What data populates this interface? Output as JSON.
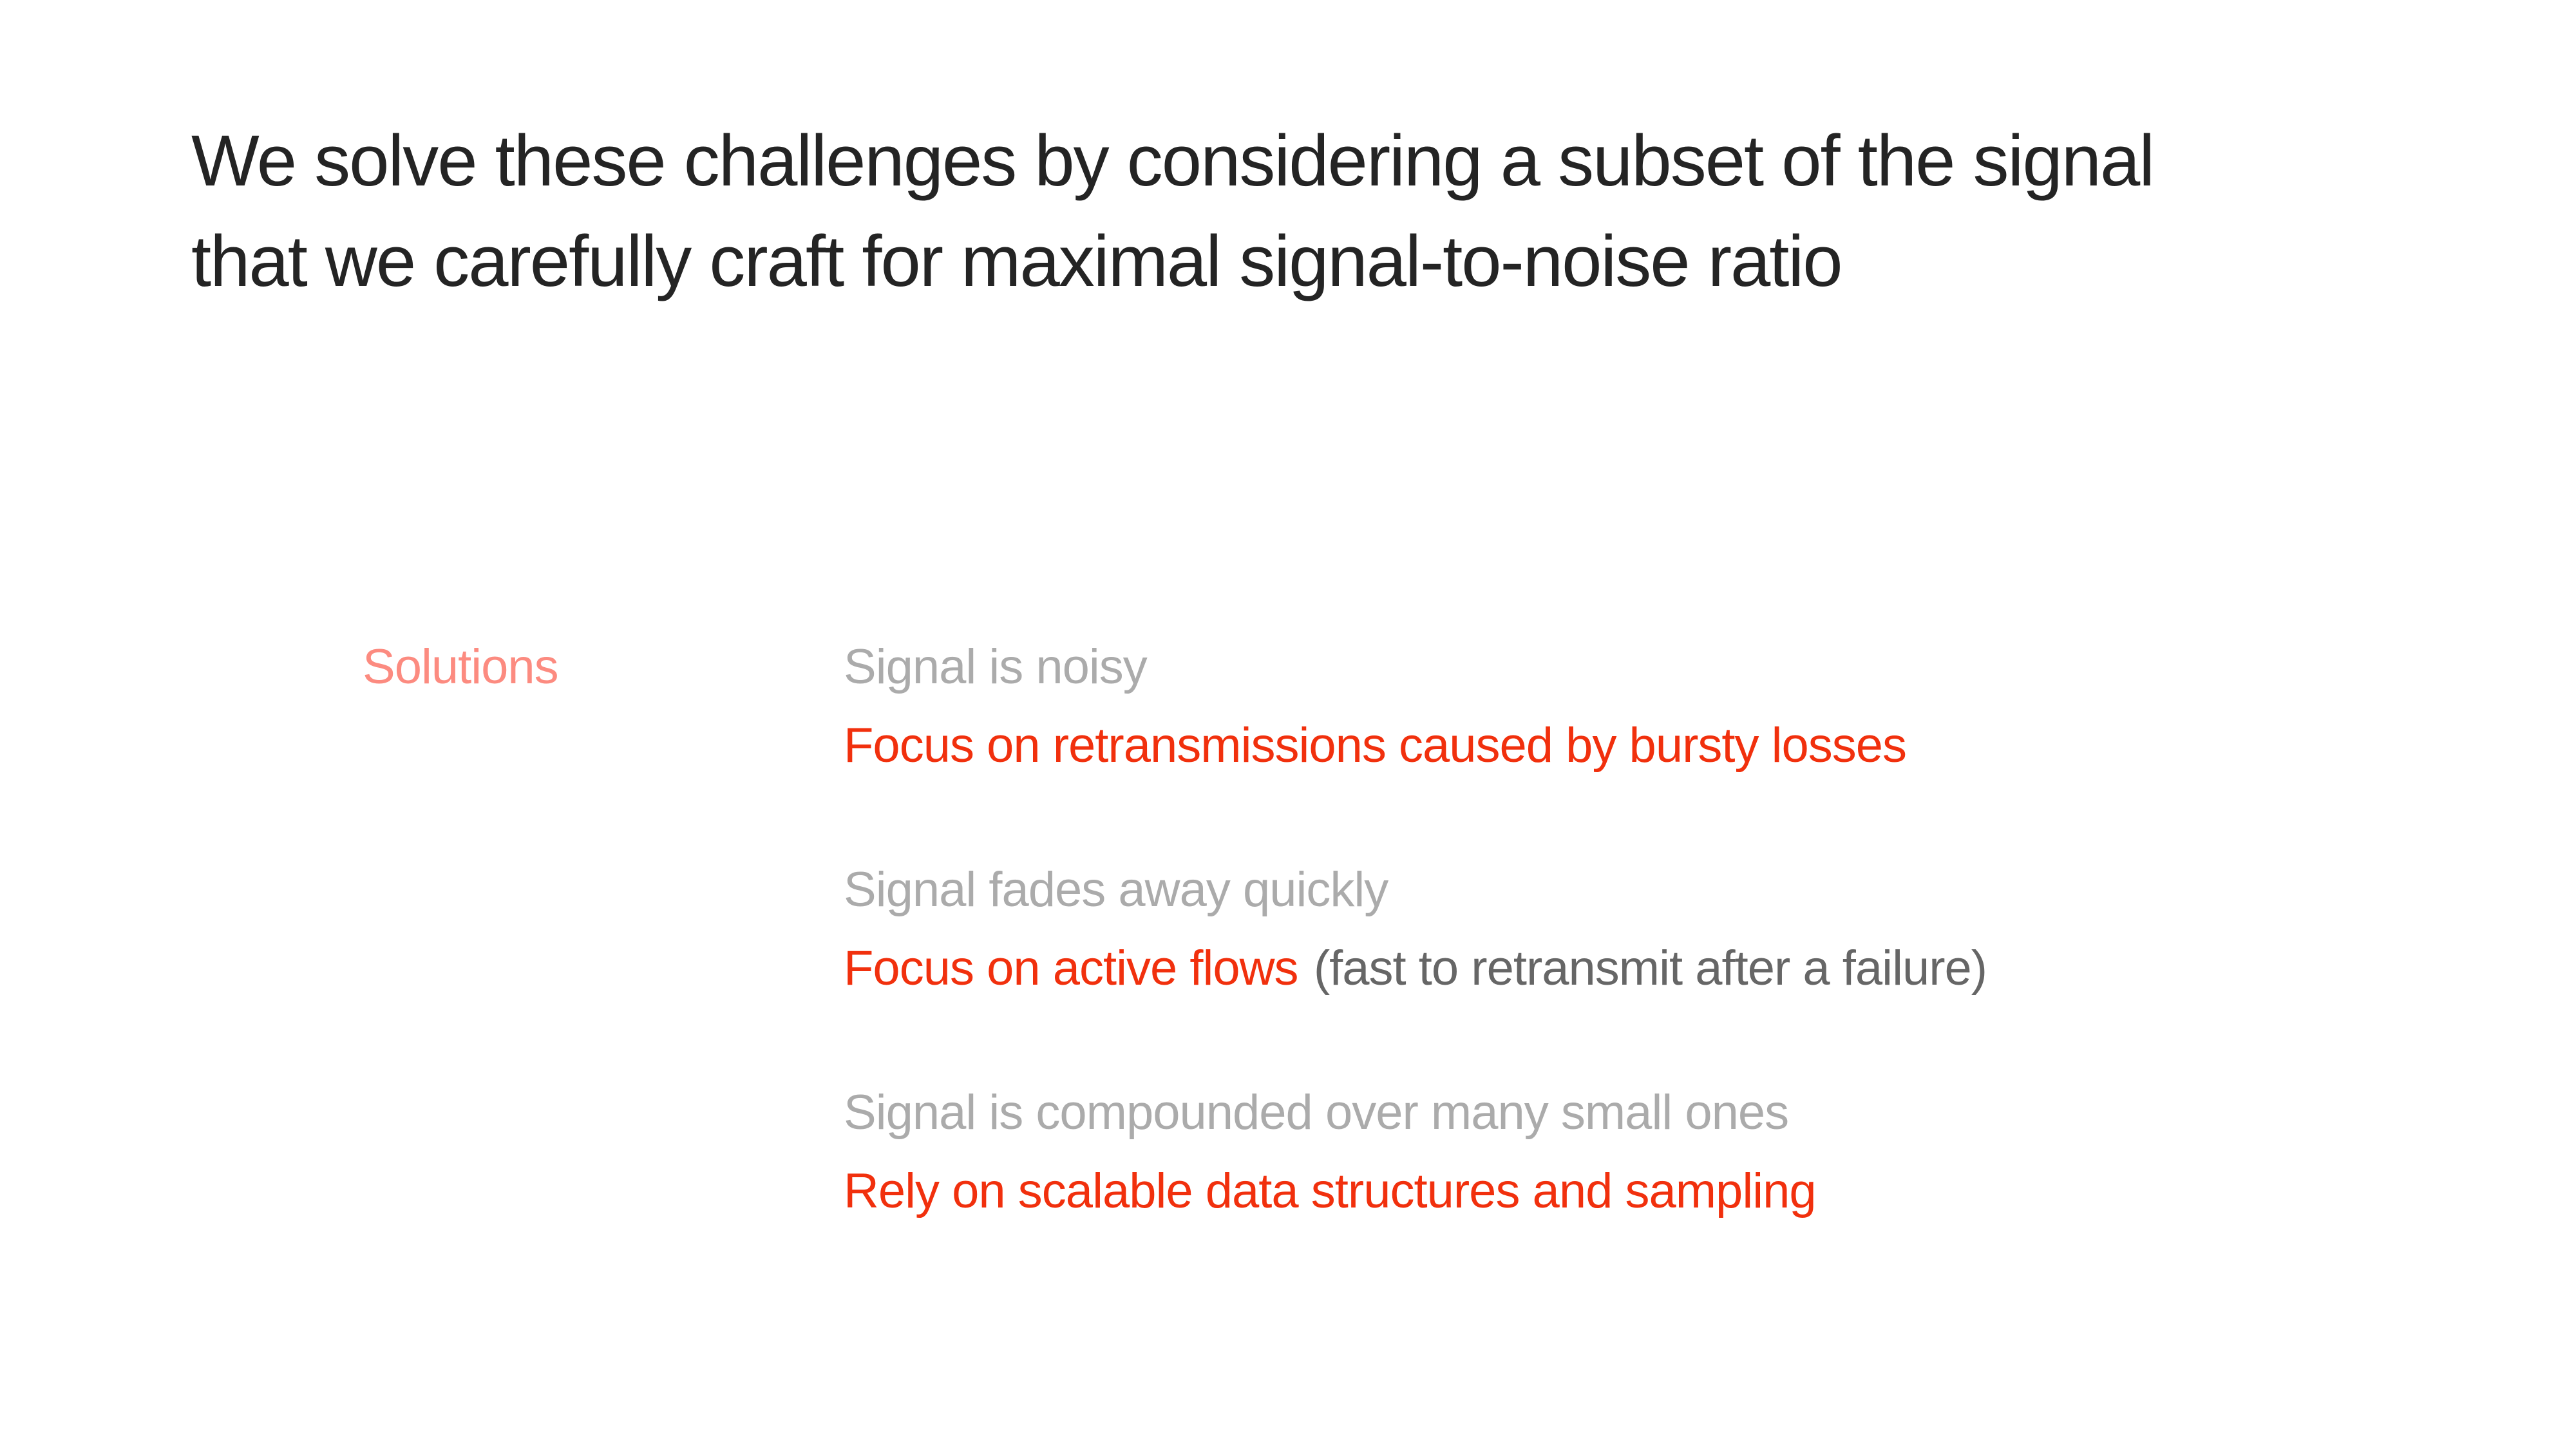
{
  "slide": {
    "background": "#ffffff",
    "title_line1": "We solve these challenges by considering a subset of the signal",
    "title_line2": "that we carefully craft for maximal signal-to-noise ratio"
  },
  "solutions": {
    "label": "Solutions",
    "items": [
      {
        "problem": "Signal is noisy",
        "solution": "Focus on retransmissions caused by bursty losses",
        "note": ""
      },
      {
        "problem": "Signal fades away quickly",
        "solution": "Focus on active flows",
        "note": "(fast to retransmit after a failure)"
      },
      {
        "problem": "Signal is compounded over many small ones",
        "solution": "Rely on scalable data structures and sampling",
        "note": ""
      }
    ]
  },
  "colors": {
    "title": "#242424",
    "problem_gray": "#ababab",
    "solution_red": "#f1300d",
    "note_gray": "#666666",
    "label_salmon": "#fc8b80"
  }
}
